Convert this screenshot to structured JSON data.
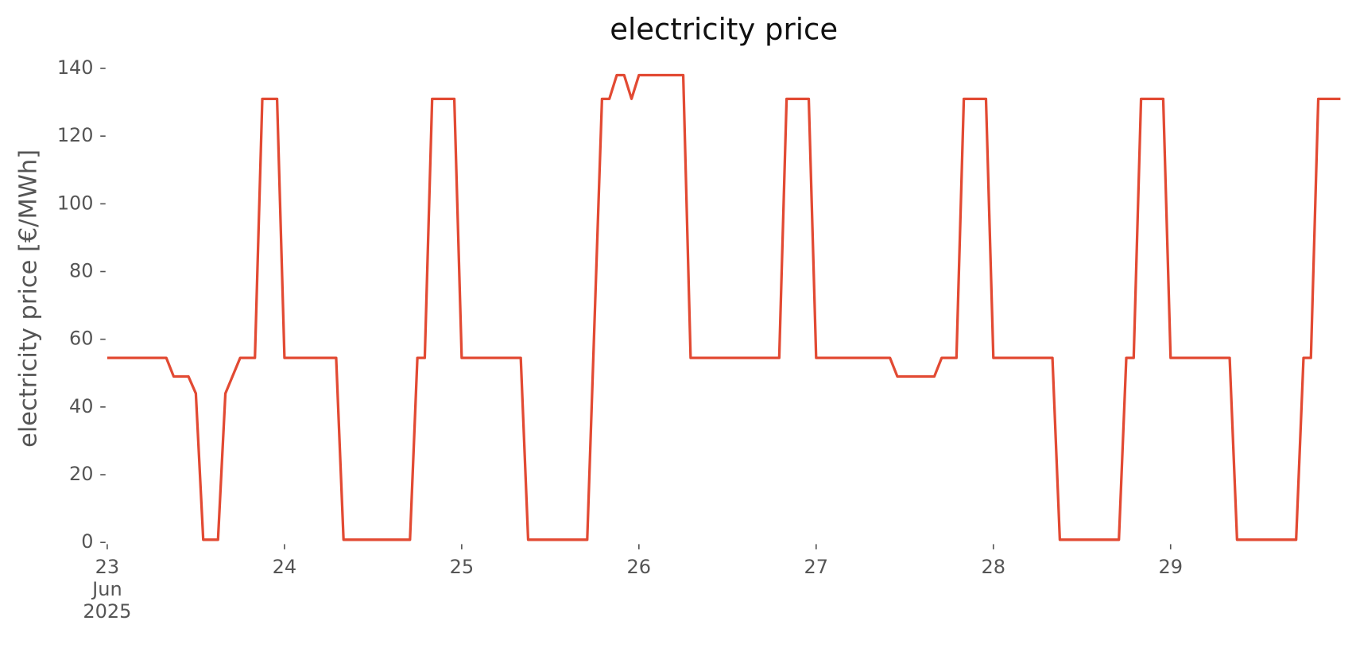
{
  "chart_data": {
    "type": "line",
    "title": "electricity price",
    "ylabel": "electricity price [€/MWh]",
    "x": [
      23,
      23.3333,
      23.375,
      23.4583,
      23.5,
      23.5417,
      23.625,
      23.6667,
      23.75,
      23.8333,
      23.875,
      23.9583,
      24,
      24.2917,
      24.3333,
      24.7083,
      24.75,
      24.7917,
      24.8333,
      24.9583,
      25,
      25.3333,
      25.375,
      25.7083,
      25.7917,
      25.8333,
      25.875,
      25.9167,
      25.9583,
      26,
      26.25,
      26.2917,
      26.7917,
      26.8333,
      26.9583,
      27,
      27.4167,
      27.4583,
      27.6667,
      27.7083,
      27.7917,
      27.8333,
      27.9583,
      28,
      28.3333,
      28.375,
      28.7083,
      28.75,
      28.7917,
      28.8333,
      28.9583,
      29,
      29.3333,
      29.375,
      29.7083,
      29.75,
      29.7917,
      29.8333,
      29.9583
    ],
    "series": [
      {
        "name": "electricity price",
        "color": "#e24a33",
        "values": [
          54.5,
          54.5,
          49,
          49,
          44,
          0.8,
          0.8,
          44,
          54.5,
          54.5,
          131,
          131,
          54.5,
          54.5,
          0.8,
          0.8,
          54.5,
          54.5,
          131,
          131,
          54.5,
          54.5,
          0.8,
          0.8,
          131,
          131,
          138,
          138,
          131,
          138,
          138,
          54.5,
          54.5,
          131,
          131,
          54.5,
          54.5,
          49,
          49,
          54.5,
          54.5,
          131,
          131,
          54.5,
          54.5,
          0.8,
          0.8,
          54.5,
          54.5,
          131,
          131,
          54.5,
          54.5,
          0.8,
          0.8,
          54.5,
          54.5,
          131,
          131
        ]
      }
    ],
    "xlim": [
      23,
      29.9583
    ],
    "xticks": [
      {
        "value": 23,
        "label": "23\nJun\n2025"
      },
      24,
      25,
      26,
      27,
      28,
      29
    ],
    "ylim": [
      0,
      140
    ],
    "yticks": [
      0,
      20,
      40,
      60,
      80,
      100,
      120,
      140
    ],
    "grid": false
  }
}
